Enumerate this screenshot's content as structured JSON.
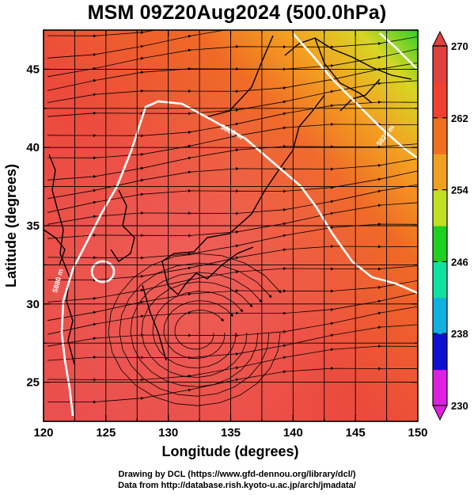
{
  "title": "MSM 09Z20Aug2024 (500.0hPa)",
  "x_axis": {
    "label": "Longitude (degrees)",
    "ticks": [
      "120",
      "125",
      "130",
      "135",
      "140",
      "145",
      "150"
    ]
  },
  "y_axis": {
    "label": "Latitude  (degrees)",
    "ticks": [
      "45",
      "40",
      "35",
      "30",
      "25"
    ]
  },
  "colorbar": {
    "ticks": [
      "270",
      "262",
      "254",
      "246",
      "238",
      "230"
    ],
    "min": 230,
    "max": 270,
    "colors": [
      "#e020e0",
      "#1010d0",
      "#10b0e0",
      "#10e0a0",
      "#20d020",
      "#c0e020",
      "#f0a020",
      "#f07020",
      "#f04030",
      "#e04040"
    ]
  },
  "contours": {
    "labels": [
      "5880 m",
      "5820 m",
      "5880 m"
    ]
  },
  "footer": {
    "line1": "Drawing by DCL (https://www.gfd-dennou.org/library/dcl/)",
    "line2": "Data from http://database.rish.kyoto-u.ac.jp/arch/jmadata/"
  },
  "chart_data": {
    "type": "heatmap",
    "title": "MSM 09Z20Aug2024 (500.0hPa)",
    "xlabel": "Longitude (degrees)",
    "ylabel": "Latitude  (degrees)",
    "xlim": [
      120,
      150
    ],
    "ylim": [
      22.5,
      47.5
    ],
    "x_ticks": [
      120,
      125,
      130,
      135,
      140,
      145,
      150
    ],
    "y_ticks": [
      25,
      30,
      35,
      40,
      45
    ],
    "colorbar_range": [
      230,
      270
    ],
    "colorbar_ticks": [
      230,
      238,
      246,
      254,
      262,
      270
    ],
    "contour_labels": [
      "5880 m",
      "5820 m"
    ],
    "grid": true
  }
}
